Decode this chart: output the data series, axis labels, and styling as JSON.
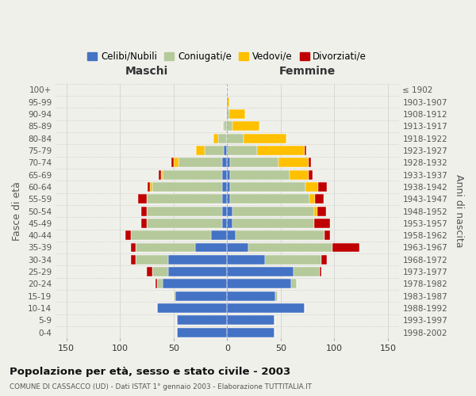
{
  "age_groups": [
    "0-4",
    "5-9",
    "10-14",
    "15-19",
    "20-24",
    "25-29",
    "30-34",
    "35-39",
    "40-44",
    "45-49",
    "50-54",
    "55-59",
    "60-64",
    "65-69",
    "70-74",
    "75-79",
    "80-84",
    "85-89",
    "90-94",
    "95-99",
    "100+"
  ],
  "birth_years": [
    "1998-2002",
    "1993-1997",
    "1988-1992",
    "1983-1987",
    "1978-1982",
    "1973-1977",
    "1968-1972",
    "1963-1967",
    "1958-1962",
    "1953-1957",
    "1948-1952",
    "1943-1947",
    "1938-1942",
    "1933-1937",
    "1928-1932",
    "1923-1927",
    "1918-1922",
    "1913-1917",
    "1908-1912",
    "1903-1907",
    "≤ 1902"
  ],
  "maschi": {
    "celibi": [
      47,
      47,
      65,
      48,
      60,
      55,
      55,
      30,
      15,
      5,
      5,
      5,
      5,
      5,
      5,
      3,
      0,
      0,
      0,
      0,
      0
    ],
    "coniugati": [
      0,
      0,
      0,
      2,
      5,
      15,
      30,
      55,
      75,
      70,
      70,
      70,
      65,
      55,
      40,
      18,
      8,
      3,
      1,
      0,
      0
    ],
    "vedovi": [
      0,
      0,
      0,
      0,
      0,
      0,
      0,
      0,
      0,
      0,
      0,
      0,
      2,
      2,
      5,
      8,
      5,
      1,
      0,
      0,
      0
    ],
    "divorziati": [
      0,
      0,
      0,
      0,
      2,
      5,
      5,
      5,
      5,
      5,
      5,
      8,
      2,
      2,
      2,
      0,
      0,
      0,
      0,
      0,
      0
    ]
  },
  "femmine": {
    "nubili": [
      44,
      44,
      72,
      45,
      60,
      62,
      35,
      20,
      8,
      5,
      5,
      3,
      3,
      3,
      3,
      0,
      0,
      0,
      0,
      0,
      0
    ],
    "coniugate": [
      0,
      0,
      0,
      2,
      5,
      24,
      53,
      78,
      83,
      76,
      76,
      74,
      70,
      55,
      45,
      28,
      15,
      5,
      2,
      0,
      0
    ],
    "vedove": [
      0,
      0,
      0,
      0,
      0,
      0,
      0,
      0,
      0,
      0,
      3,
      5,
      12,
      18,
      28,
      44,
      40,
      25,
      15,
      2,
      0
    ],
    "divorziate": [
      0,
      0,
      0,
      0,
      0,
      2,
      5,
      25,
      5,
      15,
      8,
      8,
      8,
      4,
      2,
      2,
      0,
      0,
      0,
      0,
      0
    ]
  },
  "colors": {
    "celibi_nubili": "#4472c4",
    "coniugati": "#b5c99a",
    "vedovi": "#ffc000",
    "divorziati": "#c00000"
  },
  "xlim": 160,
  "title": "Popolazione per età, sesso e stato civile - 2003",
  "subtitle": "COMUNE DI CASSACCO (UD) - Dati ISTAT 1° gennaio 2003 - Elaborazione TUTTITALIA.IT",
  "ylabel_left": "Fasce di età",
  "ylabel_right": "Anni di nascita",
  "xlabel_maschi": "Maschi",
  "xlabel_femmine": "Femmine",
  "legend_labels": [
    "Celibi/Nubili",
    "Coniugati/e",
    "Vedovi/e",
    "Divorziati/e"
  ],
  "bg_color": "#f0f0eb",
  "grid_color": "#cccccc"
}
